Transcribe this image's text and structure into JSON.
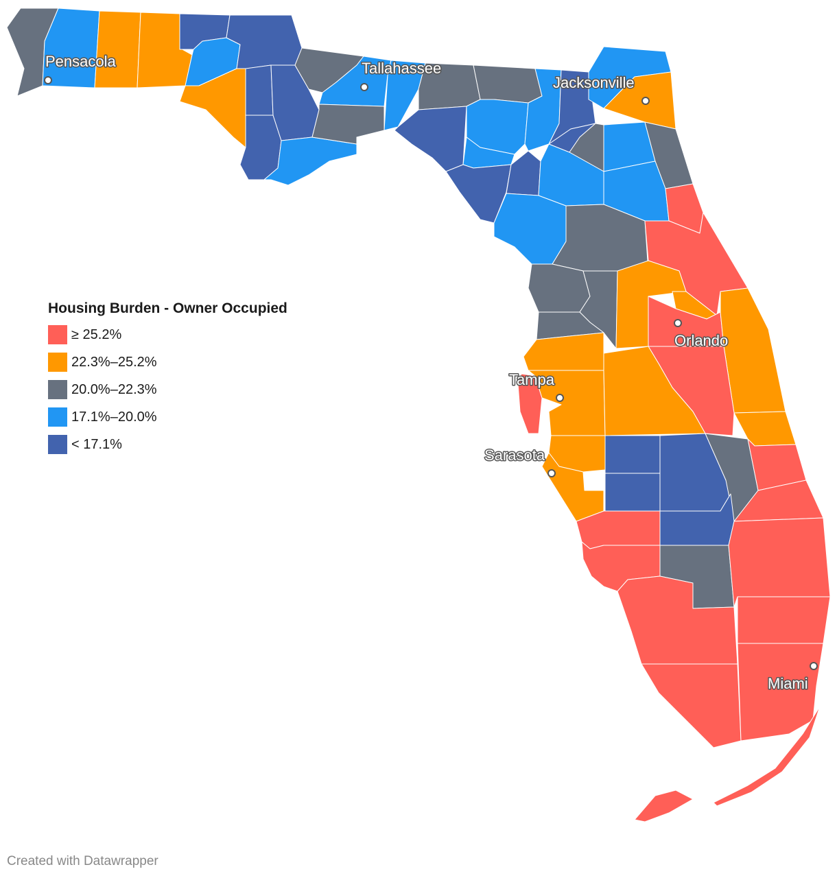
{
  "legend": {
    "title": "Housing Burden - Owner Occupied",
    "items": [
      {
        "label": "≥ 25.2%",
        "color": "#ff5f57"
      },
      {
        "label": "22.3%–25.2%",
        "color": "#ff9800"
      },
      {
        "label": "20.0%–22.3%",
        "color": "#67717f"
      },
      {
        "label": "17.1%–20.0%",
        "color": "#2196f3"
      },
      {
        "label": "< 17.1%",
        "color": "#4263ae"
      }
    ]
  },
  "cities": {
    "pensacola": "Pensacola",
    "tallahassee": "Tallahassee",
    "jacksonville": "Jacksonville",
    "orlando": "Orlando",
    "tampa": "Tampa",
    "sarasota": "Sarasota",
    "miami": "Miami"
  },
  "credit": "Created with Datawrapper"
}
